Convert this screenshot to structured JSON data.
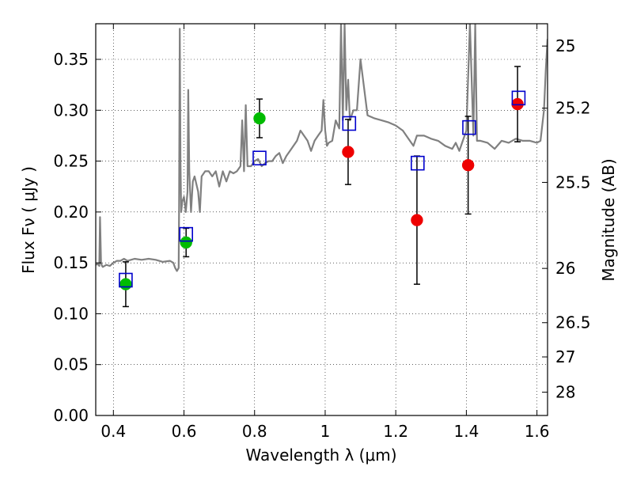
{
  "chart_data": {
    "type": "scatter",
    "xlabel": "Wavelength  λ (μm)",
    "ylabel": "Flux  Fν  ( μJy )",
    "ylabel_right": "Magnitude (AB)",
    "xlim": [
      0.35,
      1.63
    ],
    "ylim": [
      0.0,
      0.385
    ],
    "grid": true,
    "x_ticks": [
      0.4,
      0.6,
      0.8,
      1.0,
      1.2,
      1.4,
      1.6
    ],
    "x_tick_labels": [
      "0.4",
      "0.6",
      "0.8",
      "1",
      "1.2",
      "1.4",
      "1.6"
    ],
    "y_ticks": [
      0.0,
      0.05,
      0.1,
      0.15,
      0.2,
      0.25,
      0.3,
      0.35
    ],
    "y_tick_labels": [
      "0.00",
      "0.05",
      "0.10",
      "0.15",
      "0.20",
      "0.25",
      "0.30",
      "0.35"
    ],
    "right_ticks": [
      {
        "mag": 25.0,
        "label": "25"
      },
      {
        "mag": 25.2,
        "label": "25.2"
      },
      {
        "mag": 25.5,
        "label": "25.5"
      },
      {
        "mag": 26.0,
        "label": "26"
      },
      {
        "mag": 26.5,
        "label": "26.5"
      },
      {
        "mag": 27.0,
        "label": "27"
      },
      {
        "mag": 28.0,
        "label": "28"
      }
    ],
    "colors": {
      "model": "#808080",
      "green": "#00bb00",
      "red": "#ee0000",
      "box": "#0000cc",
      "errorbar": "#000000"
    },
    "series": [
      {
        "name": "Model SED",
        "kind": "line",
        "x": [
          0.35,
          0.355,
          0.36,
          0.362,
          0.365,
          0.368,
          0.37,
          0.38,
          0.39,
          0.4,
          0.41,
          0.42,
          0.43,
          0.44,
          0.45,
          0.46,
          0.48,
          0.5,
          0.52,
          0.54,
          0.56,
          0.57,
          0.575,
          0.58,
          0.585,
          0.586,
          0.588,
          0.59,
          0.592,
          0.595,
          0.6,
          0.605,
          0.61,
          0.612,
          0.615,
          0.62,
          0.625,
          0.63,
          0.64,
          0.645,
          0.65,
          0.66,
          0.67,
          0.68,
          0.69,
          0.7,
          0.71,
          0.72,
          0.73,
          0.74,
          0.75,
          0.76,
          0.765,
          0.77,
          0.775,
          0.78,
          0.79,
          0.8,
          0.81,
          0.82,
          0.83,
          0.84,
          0.85,
          0.86,
          0.87,
          0.88,
          0.89,
          0.9,
          0.92,
          0.93,
          0.94,
          0.95,
          0.96,
          0.97,
          0.98,
          0.99,
          0.995,
          1.0,
          1.005,
          1.01,
          1.02,
          1.03,
          1.04,
          1.045,
          1.05,
          1.055,
          1.06,
          1.065,
          1.07,
          1.075,
          1.08,
          1.09,
          1.1,
          1.12,
          1.14,
          1.16,
          1.18,
          1.2,
          1.22,
          1.24,
          1.25,
          1.26,
          1.28,
          1.3,
          1.32,
          1.34,
          1.36,
          1.37,
          1.38,
          1.39,
          1.4,
          1.41,
          1.42,
          1.425,
          1.43,
          1.44,
          1.46,
          1.48,
          1.5,
          1.52,
          1.54,
          1.56,
          1.58,
          1.6,
          1.61,
          1.62,
          1.625,
          1.63
        ],
        "y": [
          0.148,
          0.149,
          0.147,
          0.195,
          0.15,
          0.147,
          0.146,
          0.148,
          0.147,
          0.15,
          0.152,
          0.152,
          0.154,
          0.152,
          0.153,
          0.154,
          0.153,
          0.154,
          0.153,
          0.151,
          0.152,
          0.15,
          0.145,
          0.142,
          0.145,
          0.2,
          0.38,
          0.25,
          0.2,
          0.21,
          0.215,
          0.2,
          0.22,
          0.32,
          0.24,
          0.2,
          0.23,
          0.235,
          0.22,
          0.2,
          0.235,
          0.24,
          0.24,
          0.235,
          0.24,
          0.225,
          0.24,
          0.23,
          0.24,
          0.238,
          0.24,
          0.245,
          0.29,
          0.24,
          0.305,
          0.245,
          0.245,
          0.25,
          0.252,
          0.245,
          0.248,
          0.25,
          0.25,
          0.255,
          0.258,
          0.248,
          0.255,
          0.26,
          0.27,
          0.28,
          0.275,
          0.27,
          0.26,
          0.27,
          0.275,
          0.28,
          0.31,
          0.28,
          0.265,
          0.268,
          0.27,
          0.29,
          0.282,
          0.385,
          0.29,
          0.385,
          0.3,
          0.33,
          0.29,
          0.295,
          0.3,
          0.3,
          0.35,
          0.295,
          0.292,
          0.29,
          0.288,
          0.285,
          0.28,
          0.27,
          0.265,
          0.275,
          0.275,
          0.272,
          0.27,
          0.265,
          0.262,
          0.268,
          0.26,
          0.27,
          0.28,
          0.385,
          0.275,
          0.385,
          0.27,
          0.27,
          0.268,
          0.262,
          0.27,
          0.268,
          0.272,
          0.27,
          0.27,
          0.268,
          0.27,
          0.3,
          0.34,
          0.37
        ]
      },
      {
        "name": "Green points",
        "kind": "points",
        "points": [
          {
            "x": 0.435,
            "y": 0.129,
            "err": 0.022
          },
          {
            "x": 0.606,
            "y": 0.17,
            "err": 0.014
          },
          {
            "x": 0.814,
            "y": 0.292,
            "err": 0.019
          }
        ]
      },
      {
        "name": "Red points",
        "kind": "points",
        "points": [
          {
            "x": 1.065,
            "y": 0.259,
            "err": 0.032
          },
          {
            "x": 1.26,
            "y": 0.192,
            "err": 0.063
          },
          {
            "x": 1.405,
            "y": 0.246,
            "err": 0.048
          },
          {
            "x": 1.545,
            "y": 0.306,
            "err": 0.037
          }
        ]
      },
      {
        "name": "Model band fluxes",
        "kind": "squares",
        "points": [
          {
            "x": 0.435,
            "y": 0.133
          },
          {
            "x": 0.606,
            "y": 0.178
          },
          {
            "x": 0.814,
            "y": 0.253
          },
          {
            "x": 1.068,
            "y": 0.287
          },
          {
            "x": 1.262,
            "y": 0.248
          },
          {
            "x": 1.408,
            "y": 0.283
          },
          {
            "x": 1.548,
            "y": 0.312
          }
        ]
      }
    ]
  }
}
